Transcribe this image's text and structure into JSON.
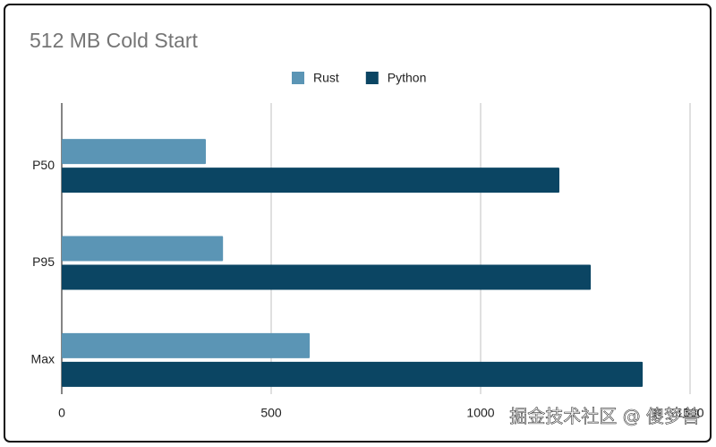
{
  "chart_data": {
    "type": "barh",
    "title": "512 MB Cold Start",
    "categories": [
      "P50",
      "P95",
      "Max"
    ],
    "series": [
      {
        "name": "Rust",
        "color": "#5b95b5",
        "values": [
          344,
          385,
          592
        ]
      },
      {
        "name": "Python",
        "color": "#0b4563",
        "values": [
          1188,
          1263,
          1387
        ]
      }
    ],
    "xlim": [
      0,
      1500
    ],
    "xticks": [
      0,
      500,
      1000,
      1500
    ],
    "grid": true,
    "legend": "top",
    "watermark": "掘金技术社区 @ 傻梦兽"
  }
}
